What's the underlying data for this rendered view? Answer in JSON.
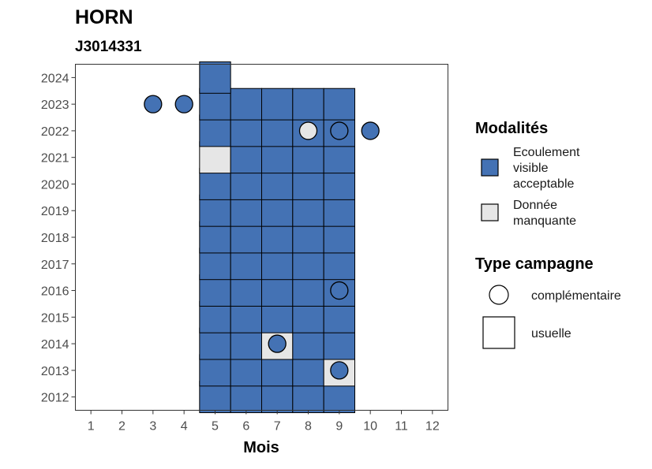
{
  "chart_data": {
    "type": "heatmap",
    "title": "HORN",
    "subtitle": "J3014331",
    "xlabel": "Mois",
    "ylabel": "",
    "x_ticks": [
      1,
      2,
      3,
      4,
      5,
      6,
      7,
      8,
      9,
      10,
      11,
      12
    ],
    "y_ticks": [
      2012,
      2013,
      2014,
      2015,
      2016,
      2017,
      2018,
      2019,
      2020,
      2021,
      2022,
      2023,
      2024
    ],
    "xlim": [
      0.5,
      12.5
    ],
    "ylim": [
      2011.5,
      2024.5
    ],
    "grid": false,
    "colors": {
      "Ecoulement visible acceptable": "#4472b4",
      "Donnée manquante": "#e6e6e6"
    },
    "tiles": [
      {
        "month": 5,
        "year": 2012,
        "status": "Ecoulement visible acceptable"
      },
      {
        "month": 6,
        "year": 2012,
        "status": "Ecoulement visible acceptable"
      },
      {
        "month": 7,
        "year": 2012,
        "status": "Ecoulement visible acceptable"
      },
      {
        "month": 8,
        "year": 2012,
        "status": "Ecoulement visible acceptable"
      },
      {
        "month": 9,
        "year": 2012,
        "status": "Ecoulement visible acceptable"
      },
      {
        "month": 5,
        "year": 2013,
        "status": "Ecoulement visible acceptable"
      },
      {
        "month": 6,
        "year": 2013,
        "status": "Ecoulement visible acceptable"
      },
      {
        "month": 7,
        "year": 2013,
        "status": "Ecoulement visible acceptable"
      },
      {
        "month": 8,
        "year": 2013,
        "status": "Ecoulement visible acceptable"
      },
      {
        "month": 9,
        "year": 2013,
        "status": "Donnée manquante"
      },
      {
        "month": 5,
        "year": 2014,
        "status": "Ecoulement visible acceptable"
      },
      {
        "month": 6,
        "year": 2014,
        "status": "Ecoulement visible acceptable"
      },
      {
        "month": 7,
        "year": 2014,
        "status": "Donnée manquante"
      },
      {
        "month": 8,
        "year": 2014,
        "status": "Ecoulement visible acceptable"
      },
      {
        "month": 9,
        "year": 2014,
        "status": "Ecoulement visible acceptable"
      },
      {
        "month": 5,
        "year": 2015,
        "status": "Ecoulement visible acceptable"
      },
      {
        "month": 6,
        "year": 2015,
        "status": "Ecoulement visible acceptable"
      },
      {
        "month": 7,
        "year": 2015,
        "status": "Ecoulement visible acceptable"
      },
      {
        "month": 8,
        "year": 2015,
        "status": "Ecoulement visible acceptable"
      },
      {
        "month": 9,
        "year": 2015,
        "status": "Ecoulement visible acceptable"
      },
      {
        "month": 5,
        "year": 2016,
        "status": "Ecoulement visible acceptable"
      },
      {
        "month": 6,
        "year": 2016,
        "status": "Ecoulement visible acceptable"
      },
      {
        "month": 7,
        "year": 2016,
        "status": "Ecoulement visible acceptable"
      },
      {
        "month": 8,
        "year": 2016,
        "status": "Ecoulement visible acceptable"
      },
      {
        "month": 9,
        "year": 2016,
        "status": "Ecoulement visible acceptable"
      },
      {
        "month": 5,
        "year": 2017,
        "status": "Ecoulement visible acceptable"
      },
      {
        "month": 6,
        "year": 2017,
        "status": "Ecoulement visible acceptable"
      },
      {
        "month": 7,
        "year": 2017,
        "status": "Ecoulement visible acceptable"
      },
      {
        "month": 8,
        "year": 2017,
        "status": "Ecoulement visible acceptable"
      },
      {
        "month": 9,
        "year": 2017,
        "status": "Ecoulement visible acceptable"
      },
      {
        "month": 5,
        "year": 2018,
        "status": "Ecoulement visible acceptable"
      },
      {
        "month": 6,
        "year": 2018,
        "status": "Ecoulement visible acceptable"
      },
      {
        "month": 7,
        "year": 2018,
        "status": "Ecoulement visible acceptable"
      },
      {
        "month": 8,
        "year": 2018,
        "status": "Ecoulement visible acceptable"
      },
      {
        "month": 9,
        "year": 2018,
        "status": "Ecoulement visible acceptable"
      },
      {
        "month": 5,
        "year": 2019,
        "status": "Ecoulement visible acceptable"
      },
      {
        "month": 6,
        "year": 2019,
        "status": "Ecoulement visible acceptable"
      },
      {
        "month": 7,
        "year": 2019,
        "status": "Ecoulement visible acceptable"
      },
      {
        "month": 8,
        "year": 2019,
        "status": "Ecoulement visible acceptable"
      },
      {
        "month": 9,
        "year": 2019,
        "status": "Ecoulement visible acceptable"
      },
      {
        "month": 5,
        "year": 2020,
        "status": "Ecoulement visible acceptable"
      },
      {
        "month": 6,
        "year": 2020,
        "status": "Ecoulement visible acceptable"
      },
      {
        "month": 7,
        "year": 2020,
        "status": "Ecoulement visible acceptable"
      },
      {
        "month": 8,
        "year": 2020,
        "status": "Ecoulement visible acceptable"
      },
      {
        "month": 9,
        "year": 2020,
        "status": "Ecoulement visible acceptable"
      },
      {
        "month": 5,
        "year": 2021,
        "status": "Donnée manquante"
      },
      {
        "month": 6,
        "year": 2021,
        "status": "Ecoulement visible acceptable"
      },
      {
        "month": 7,
        "year": 2021,
        "status": "Ecoulement visible acceptable"
      },
      {
        "month": 8,
        "year": 2021,
        "status": "Ecoulement visible acceptable"
      },
      {
        "month": 9,
        "year": 2021,
        "status": "Ecoulement visible acceptable"
      },
      {
        "month": 5,
        "year": 2022,
        "status": "Ecoulement visible acceptable"
      },
      {
        "month": 6,
        "year": 2022,
        "status": "Ecoulement visible acceptable"
      },
      {
        "month": 7,
        "year": 2022,
        "status": "Ecoulement visible acceptable"
      },
      {
        "month": 8,
        "year": 2022,
        "status": "Ecoulement visible acceptable"
      },
      {
        "month": 9,
        "year": 2022,
        "status": "Ecoulement visible acceptable"
      },
      {
        "month": 5,
        "year": 2023,
        "status": "Ecoulement visible acceptable"
      },
      {
        "month": 6,
        "year": 2023,
        "status": "Ecoulement visible acceptable"
      },
      {
        "month": 7,
        "year": 2023,
        "status": "Ecoulement visible acceptable"
      },
      {
        "month": 8,
        "year": 2023,
        "status": "Ecoulement visible acceptable"
      },
      {
        "month": 9,
        "year": 2023,
        "status": "Ecoulement visible acceptable"
      },
      {
        "month": 5,
        "year": 2024,
        "status": "Ecoulement visible acceptable"
      }
    ],
    "points": [
      {
        "month": 3,
        "year": 2023,
        "status": "Ecoulement visible acceptable"
      },
      {
        "month": 4,
        "year": 2023,
        "status": "Ecoulement visible acceptable"
      },
      {
        "month": 8,
        "year": 2022,
        "status": "Donnée manquante"
      },
      {
        "month": 9,
        "year": 2022,
        "status": "Ecoulement visible acceptable"
      },
      {
        "month": 10,
        "year": 2022,
        "status": "Ecoulement visible acceptable"
      },
      {
        "month": 9,
        "year": 2016,
        "status": "Ecoulement visible acceptable"
      },
      {
        "month": 7,
        "year": 2014,
        "status": "Ecoulement visible acceptable"
      },
      {
        "month": 9,
        "year": 2013,
        "status": "Ecoulement visible acceptable"
      }
    ],
    "legend": {
      "placement": "right",
      "modalites_title": "Modalités",
      "modalites": [
        {
          "lines": [
            "Ecoulement",
            "visible",
            "acceptable"
          ],
          "color": "#4472b4"
        },
        {
          "lines": [
            "Donnée",
            "manquante"
          ],
          "color": "#e6e6e6"
        }
      ],
      "type_title": "Type campagne",
      "types": [
        {
          "label": "complémentaire",
          "shape": "circle"
        },
        {
          "label": "usuelle",
          "shape": "square"
        }
      ]
    }
  }
}
